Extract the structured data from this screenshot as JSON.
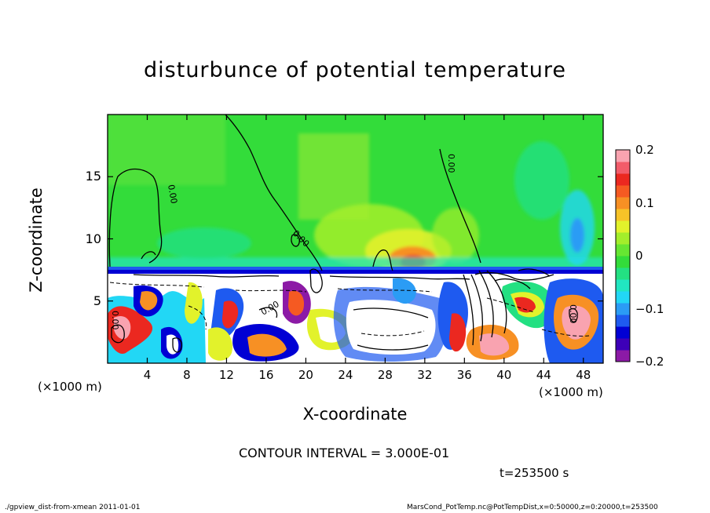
{
  "chart_data": {
    "type": "heatmap",
    "title": "disturbunce of potential temperature",
    "xlabel": "X-coordinate",
    "ylabel": "Z-coordinate",
    "x_unit_label": "(×1000 m)",
    "y_unit_label": "(×1000 m)",
    "xlim": [
      0,
      50
    ],
    "ylim": [
      0,
      20
    ],
    "x_ticks": [
      "4",
      "8",
      "12",
      "16",
      "20",
      "24",
      "28",
      "32",
      "36",
      "40",
      "44",
      "48"
    ],
    "y_ticks": [
      "5",
      "10",
      "15"
    ],
    "x_tick_values": [
      4,
      8,
      12,
      16,
      20,
      24,
      28,
      32,
      36,
      40,
      44,
      48
    ],
    "y_tick_values": [
      5,
      10,
      15
    ],
    "colorbar": {
      "range": [
        -0.2,
        0.2
      ],
      "tick_labels": [
        "0.2",
        "0.1",
        "0",
        "−0.1",
        "−0.2"
      ],
      "tick_values": [
        0.2,
        0.1,
        0,
        -0.1,
        -0.2
      ],
      "colors": [
        "#8c1aa6",
        "#3d00b8",
        "#0000d4",
        "#1e5af0",
        "#2b9cf5",
        "#22d7f5",
        "#21e6c1",
        "#23e082",
        "#33dc3a",
        "#66e632",
        "#a3ee2b",
        "#e2f22b",
        "#f7c328",
        "#f79024",
        "#f55a22",
        "#eb2820",
        "#f25c6a",
        "#f9a3b0"
      ]
    },
    "contour_interval_label": "CONTOUR INTERVAL = 3.000E-01",
    "time_label": "t=253500 s",
    "contour_label": "0.00"
  },
  "footer": {
    "left": "./gpview_dist-from-xmean  2011-01-01",
    "right": "MarsCond_PotTemp.nc@PotTempDist,x=0:50000,z=0:20000,t=253500"
  }
}
